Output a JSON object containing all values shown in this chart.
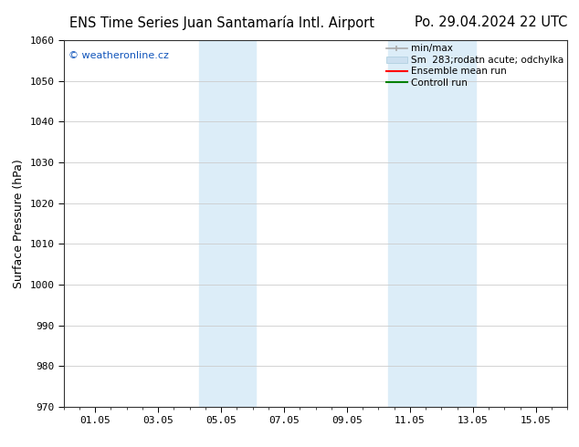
{
  "title_left": "ENS Time Series Juan Santamaría Intl. Airport",
  "title_right": "Po. 29.04.2024 22 UTC",
  "ylabel": "Surface Pressure (hPa)",
  "ylim": [
    970,
    1060
  ],
  "yticks": [
    970,
    980,
    990,
    1000,
    1010,
    1020,
    1030,
    1040,
    1050,
    1060
  ],
  "xlim": [
    0,
    16
  ],
  "xtick_labels": [
    "01.05",
    "03.05",
    "05.05",
    "07.05",
    "09.05",
    "11.05",
    "13.05",
    "15.05"
  ],
  "xtick_positions": [
    1,
    3,
    5,
    7,
    9,
    11,
    13,
    15
  ],
  "shaded_bands": [
    {
      "x_start": 4.3,
      "x_end": 6.1,
      "color": "#dcedf8"
    },
    {
      "x_start": 10.3,
      "x_end": 13.1,
      "color": "#dcedf8"
    }
  ],
  "watermark_text": "© weatheronline.cz",
  "watermark_color": "#1155bb",
  "bg_color": "#ffffff",
  "grid_color": "#cccccc",
  "title_fontsize": 10.5,
  "tick_fontsize": 8,
  "ylabel_fontsize": 9,
  "legend_fontsize": 7.5
}
